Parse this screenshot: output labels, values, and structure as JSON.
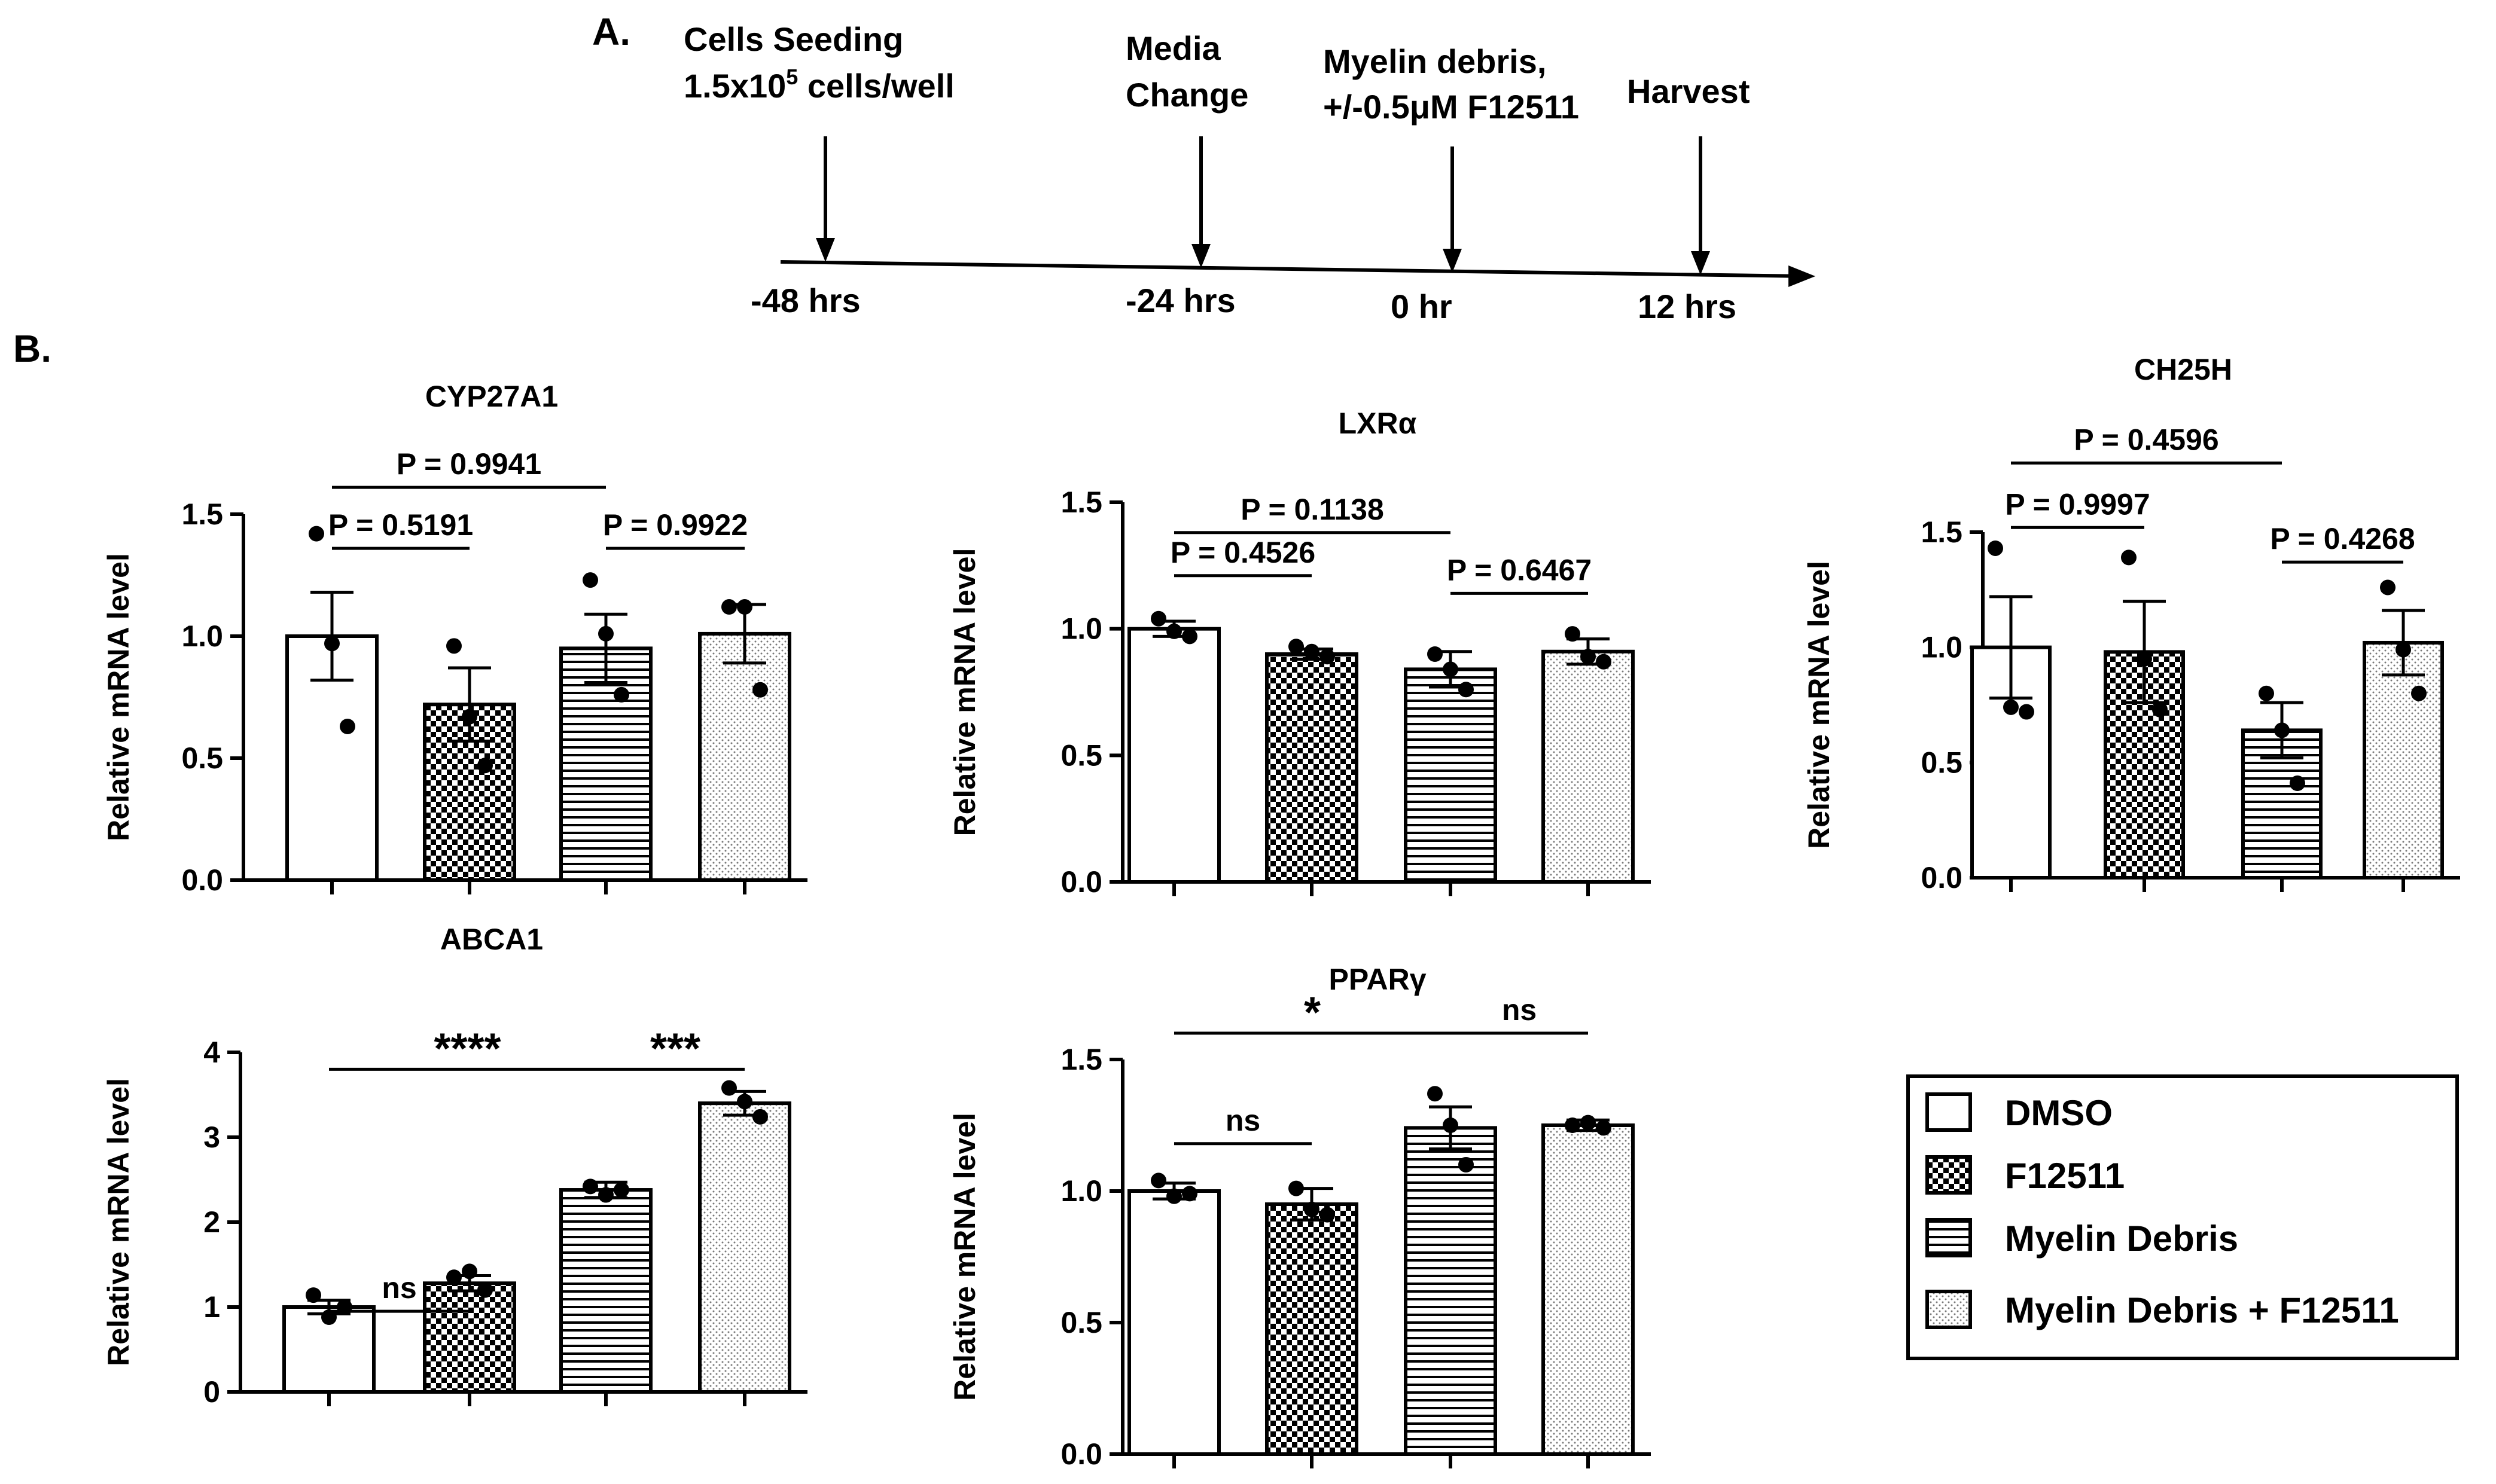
{
  "panel_labels": {
    "a": "A.",
    "b": "B."
  },
  "timeline": {
    "events": [
      {
        "lines": [
          "Cells Seeding",
          "1.5x10",
          "5",
          " cells/well"
        ],
        "label1": "Cells Seeding",
        "label2_base": "1.5x10",
        "label2_sup": "5",
        "label2_rest": " cells/well",
        "time": "-48 hrs"
      },
      {
        "label1": "Media",
        "label2": "Change",
        "time": "-24 hrs"
      },
      {
        "label1": "Myelin debris,",
        "label2": "+/-0.5μM F12511",
        "time": "0 hr"
      },
      {
        "label1": "Harvest",
        "label2": "",
        "time": "12 hrs"
      }
    ]
  },
  "legend": {
    "entries": [
      {
        "label": "DMSO",
        "pattern": "open"
      },
      {
        "label": "F12511",
        "pattern": "checker"
      },
      {
        "label": "Myelin Debris",
        "pattern": "hlines"
      },
      {
        "label": "Myelin Debris + F12511",
        "pattern": "dots"
      }
    ]
  },
  "colors": {
    "ink": "#000000",
    "background": "#ffffff"
  },
  "chart_data": [
    {
      "id": "cyp27a1",
      "type": "bar",
      "title": "CYP27A1",
      "ylabel": "Relative mRNA level",
      "xlabel": "",
      "ylim": [
        0,
        1.5
      ],
      "yticks": [
        "0.0",
        "0.5",
        "1.0",
        "1.5"
      ],
      "ytick_values": [
        0,
        0.5,
        1.0,
        1.5
      ],
      "categories": [
        "DMSO",
        "F12511",
        "Myelin Debris",
        "Myelin Debris + F12511"
      ],
      "values": [
        1.0,
        0.72,
        0.95,
        1.01
      ],
      "errors": [
        0.18,
        0.15,
        0.14,
        0.12
      ],
      "points": [
        [
          1.42,
          0.97,
          0.63
        ],
        [
          0.96,
          0.67,
          0.47
        ],
        [
          1.23,
          1.01,
          0.76
        ],
        [
          1.12,
          1.12,
          0.78
        ]
      ],
      "comparisons": [
        {
          "from": 0,
          "to": 1,
          "label": "P = 0.5191",
          "level": 1.36
        },
        {
          "from": 2,
          "to": 3,
          "label": "P = 0.9922",
          "level": 1.36
        },
        {
          "from": 0,
          "to": 2,
          "label": "P = 0.9941",
          "level": 1.61
        }
      ]
    },
    {
      "id": "lxra",
      "type": "bar",
      "title": "LXRα",
      "ylabel": "Relative mRNA level",
      "xlabel": "",
      "ylim": [
        0,
        1.5
      ],
      "yticks": [
        "0.0",
        "0.5",
        "1.0",
        "1.5"
      ],
      "ytick_values": [
        0,
        0.5,
        1.0,
        1.5
      ],
      "categories": [
        "DMSO",
        "F12511",
        "Myelin Debris",
        "Myelin Debris + F12511"
      ],
      "values": [
        1.0,
        0.9,
        0.84,
        0.91
      ],
      "errors": [
        0.03,
        0.02,
        0.07,
        0.05
      ],
      "points": [
        [
          1.04,
          0.99,
          0.97
        ],
        [
          0.93,
          0.91,
          0.89
        ],
        [
          0.9,
          0.84,
          0.76
        ],
        [
          0.98,
          0.89,
          0.87
        ]
      ],
      "comparisons": [
        {
          "from": 0,
          "to": 1,
          "label": "P = 0.4526",
          "level": 1.21
        },
        {
          "from": 2,
          "to": 3,
          "label": "P = 0.6467",
          "level": 1.14
        },
        {
          "from": 0,
          "to": 2,
          "label": "P = 0.1138",
          "level": 1.38
        }
      ]
    },
    {
      "id": "ch25h",
      "type": "bar",
      "title": "CH25H",
      "ylabel": "Relative mRNA level",
      "xlabel": "",
      "ylim": [
        0,
        1.5
      ],
      "yticks": [
        "0.0",
        "0.5",
        "1.0",
        "1.5"
      ],
      "ytick_values": [
        0,
        0.5,
        1.0,
        1.5
      ],
      "categories": [
        "DMSO",
        "F12511",
        "Myelin Debris",
        "Myelin Debris + F12511"
      ],
      "values": [
        1.0,
        0.98,
        0.64,
        1.02
      ],
      "errors": [
        0.22,
        0.22,
        0.12,
        0.14
      ],
      "points": [
        [
          1.43,
          0.74,
          0.72
        ],
        [
          1.39,
          0.95,
          0.73
        ],
        [
          0.8,
          0.64,
          0.41
        ],
        [
          1.26,
          0.99,
          0.8
        ]
      ],
      "comparisons": [
        {
          "from": 0,
          "to": 1,
          "label": "P = 0.9997",
          "level": 1.52
        },
        {
          "from": 2,
          "to": 3,
          "label": "P = 0.4268",
          "level": 1.37
        },
        {
          "from": 0,
          "to": 2,
          "label": "P = 0.4596",
          "level": 1.8
        }
      ]
    },
    {
      "id": "abca1",
      "type": "bar",
      "title": "ABCA1",
      "ylabel": "Relative mRNA level",
      "xlabel": "",
      "ylim": [
        0,
        4
      ],
      "yticks": [
        "0",
        "1",
        "2",
        "3",
        "4"
      ],
      "ytick_values": [
        0,
        1,
        2,
        3,
        4
      ],
      "categories": [
        "DMSO",
        "F12511",
        "Myelin Debris",
        "Myelin Debris + F12511"
      ],
      "values": [
        1.0,
        1.28,
        2.38,
        3.4
      ],
      "errors": [
        0.08,
        0.09,
        0.09,
        0.14
      ],
      "points": [
        [
          1.14,
          0.88,
          1.0
        ],
        [
          1.35,
          1.42,
          1.2
        ],
        [
          2.42,
          2.32,
          2.38
        ],
        [
          3.58,
          3.42,
          3.24
        ]
      ],
      "comparisons": [
        {
          "from": 0,
          "to": 1,
          "label": "ns",
          "level": 0.95,
          "below": true
        },
        {
          "from": 0,
          "to": 2,
          "label": "****",
          "level": 3.8
        },
        {
          "from": 2,
          "to": 3,
          "label": "***",
          "level": 3.8
        }
      ]
    },
    {
      "id": "pparg",
      "type": "bar",
      "title": "PPARγ",
      "ylabel": "Relative mRNA level",
      "xlabel": "",
      "ylim": [
        0,
        1.5
      ],
      "yticks": [
        "0.0",
        "0.5",
        "1.0",
        "1.5"
      ],
      "ytick_values": [
        0,
        0.5,
        1.0,
        1.5
      ],
      "categories": [
        "DMSO",
        "F12511",
        "Myelin Debris",
        "Myelin Debris + F12511"
      ],
      "values": [
        1.0,
        0.95,
        1.24,
        1.25
      ],
      "errors": [
        0.03,
        0.06,
        0.08,
        0.02
      ],
      "points": [
        [
          1.04,
          0.98,
          0.99
        ],
        [
          1.01,
          0.93,
          0.91
        ],
        [
          1.37,
          1.25,
          1.1
        ],
        [
          1.25,
          1.26,
          1.24
        ]
      ],
      "comparisons": [
        {
          "from": 0,
          "to": 1,
          "label": "ns",
          "level": 1.18
        },
        {
          "from": 0,
          "to": 2,
          "label": "*",
          "level": 1.6
        },
        {
          "from": 2,
          "to": 3,
          "label": "ns",
          "level": 1.6
        }
      ]
    }
  ]
}
